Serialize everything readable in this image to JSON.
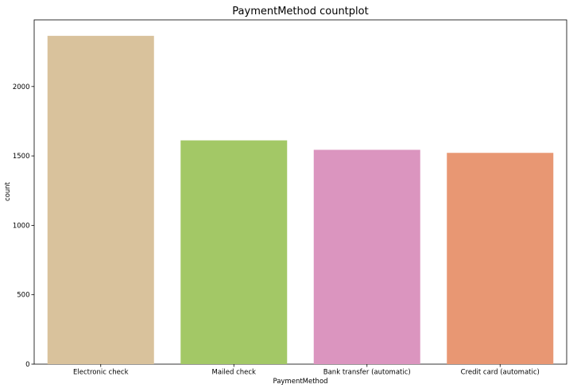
{
  "chart_data": {
    "type": "bar",
    "title": "PaymentMethod countplot",
    "xlabel": "PaymentMethod",
    "ylabel": "count",
    "categories": [
      "Electronic check",
      "Mailed check",
      "Bank transfer (automatic)",
      "Credit card (automatic)"
    ],
    "values": [
      2365,
      1612,
      1544,
      1522
    ],
    "colors": [
      "#d9c29c",
      "#a3c866",
      "#db95bf",
      "#e89773"
    ],
    "ylim": [
      0,
      2480
    ],
    "yticks": [
      0,
      500,
      1000,
      1500,
      2000
    ],
    "grid": false,
    "legend": "none"
  }
}
